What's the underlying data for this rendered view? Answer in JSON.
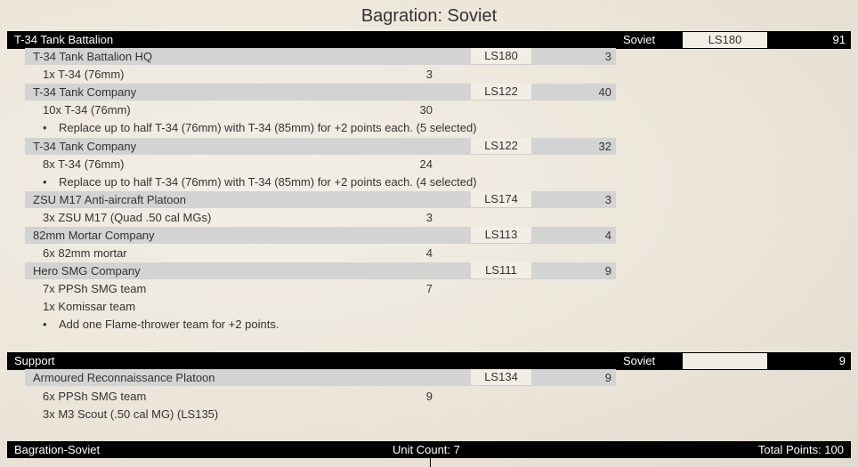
{
  "title": "Bagration: Soviet",
  "sections": [
    {
      "name": "T-34 Tank Battalion",
      "faction": "Soviet",
      "ls": "LS180",
      "points": "91",
      "rows": [
        {
          "type": "unit",
          "name": "T-34 Tank Battalion HQ",
          "ls": "LS180",
          "points": "3"
        },
        {
          "type": "item",
          "name": "1x T-34 (76mm)",
          "points": "3"
        },
        {
          "type": "unit",
          "name": "T-34 Tank Company",
          "ls": "LS122",
          "points": "40"
        },
        {
          "type": "item",
          "name": "10x T-34 (76mm)",
          "points": "30"
        },
        {
          "type": "opt",
          "text": "Replace up to half T-34 (76mm) with T-34 (85mm) for +2 points each.  (5 selected)"
        },
        {
          "type": "unit",
          "name": "T-34 Tank Company",
          "ls": "LS122",
          "points": "32"
        },
        {
          "type": "item",
          "name": "8x T-34 (76mm)",
          "points": "24"
        },
        {
          "type": "opt",
          "text": "Replace up to half T-34 (76mm) with T-34 (85mm) for +2 points each.  (4 selected)"
        },
        {
          "type": "unit",
          "name": "ZSU M17 Anti-aircraft Platoon",
          "ls": "LS174",
          "points": "3"
        },
        {
          "type": "item",
          "name": "3x ZSU M17 (Quad .50 cal MGs)",
          "points": "3"
        },
        {
          "type": "unit",
          "name": "82mm Mortar Company",
          "ls": "LS113",
          "points": "4"
        },
        {
          "type": "item",
          "name": "6x 82mm mortar",
          "points": "4"
        },
        {
          "type": "unit",
          "name": "Hero SMG Company",
          "ls": "LS111",
          "points": "9"
        },
        {
          "type": "item",
          "name": "7x PPSh SMG team",
          "points": "7"
        },
        {
          "type": "item",
          "name": "1x Komissar team",
          "points": ""
        },
        {
          "type": "opt",
          "text": "Add one Flame-thrower team for +2 points."
        }
      ]
    },
    {
      "name": "Support",
      "faction": "Soviet",
      "ls": "",
      "points": "9",
      "rows": [
        {
          "type": "unit",
          "name": "Armoured Reconnaissance Platoon",
          "ls": "LS134",
          "points": "9"
        },
        {
          "type": "item",
          "name": "6x PPSh SMG team",
          "points": "9"
        },
        {
          "type": "item",
          "name": "3x M3 Scout (.50 cal MG) (LS135)",
          "points": ""
        }
      ]
    }
  ],
  "footer": {
    "list_name": "Bagration-Soviet",
    "unit_count": "Unit Count: 7",
    "total_points": "Total Points: 100"
  }
}
